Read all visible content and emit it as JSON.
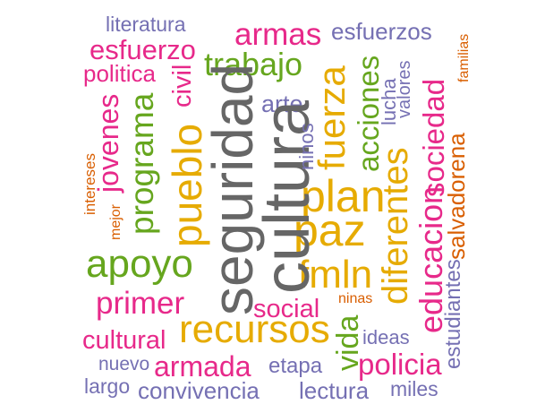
{
  "colors": {
    "magenta": "#e7298a",
    "green": "#66a61e",
    "gold": "#e6ab02",
    "lavender": "#7570b3",
    "orange": "#d95f02",
    "gray": "#666666"
  },
  "words": [
    {
      "text": "literatura",
      "color": "lavender"
    },
    {
      "text": "armas",
      "color": "magenta"
    },
    {
      "text": "esfuerzos",
      "color": "lavender"
    },
    {
      "text": "familias",
      "color": "orange"
    },
    {
      "text": "esfuerzo",
      "color": "magenta"
    },
    {
      "text": "politica",
      "color": "magenta"
    },
    {
      "text": "civil",
      "color": "magenta"
    },
    {
      "text": "trabajo",
      "color": "green"
    },
    {
      "text": "fuerza",
      "color": "gold"
    },
    {
      "text": "acciones",
      "color": "green"
    },
    {
      "text": "valores",
      "color": "lavender"
    },
    {
      "text": "lucha",
      "color": "lavender"
    },
    {
      "text": "sociedad",
      "color": "magenta"
    },
    {
      "text": "salvadorena",
      "color": "orange"
    },
    {
      "text": "jovenes",
      "color": "magenta"
    },
    {
      "text": "arte",
      "color": "lavender"
    },
    {
      "text": "programa",
      "color": "green"
    },
    {
      "text": "pueblo",
      "color": "gold"
    },
    {
      "text": "seguridad",
      "color": "gray"
    },
    {
      "text": "cultura",
      "color": "gray"
    },
    {
      "text": "ninos",
      "color": "lavender"
    },
    {
      "text": "plan",
      "color": "gold"
    },
    {
      "text": "diferentes",
      "color": "gold"
    },
    {
      "text": "educacion",
      "color": "magenta"
    },
    {
      "text": "estudiantes",
      "color": "lavender"
    },
    {
      "text": "intereses",
      "color": "orange"
    },
    {
      "text": "mejor",
      "color": "orange"
    },
    {
      "text": "paz",
      "color": "gold"
    },
    {
      "text": "apoyo",
      "color": "green"
    },
    {
      "text": "fmln",
      "color": "gold"
    },
    {
      "text": "primer",
      "color": "magenta"
    },
    {
      "text": "social",
      "color": "magenta"
    },
    {
      "text": "ninas",
      "color": "orange"
    },
    {
      "text": "recursos",
      "color": "gold"
    },
    {
      "text": "vida",
      "color": "green"
    },
    {
      "text": "cultural",
      "color": "magenta"
    },
    {
      "text": "ideas",
      "color": "lavender"
    },
    {
      "text": "nuevo",
      "color": "lavender"
    },
    {
      "text": "armada",
      "color": "magenta"
    },
    {
      "text": "etapa",
      "color": "lavender"
    },
    {
      "text": "policia",
      "color": "magenta"
    },
    {
      "text": "largo",
      "color": "lavender"
    },
    {
      "text": "convivencia",
      "color": "lavender"
    },
    {
      "text": "lectura",
      "color": "lavender"
    },
    {
      "text": "miles",
      "color": "lavender"
    }
  ]
}
